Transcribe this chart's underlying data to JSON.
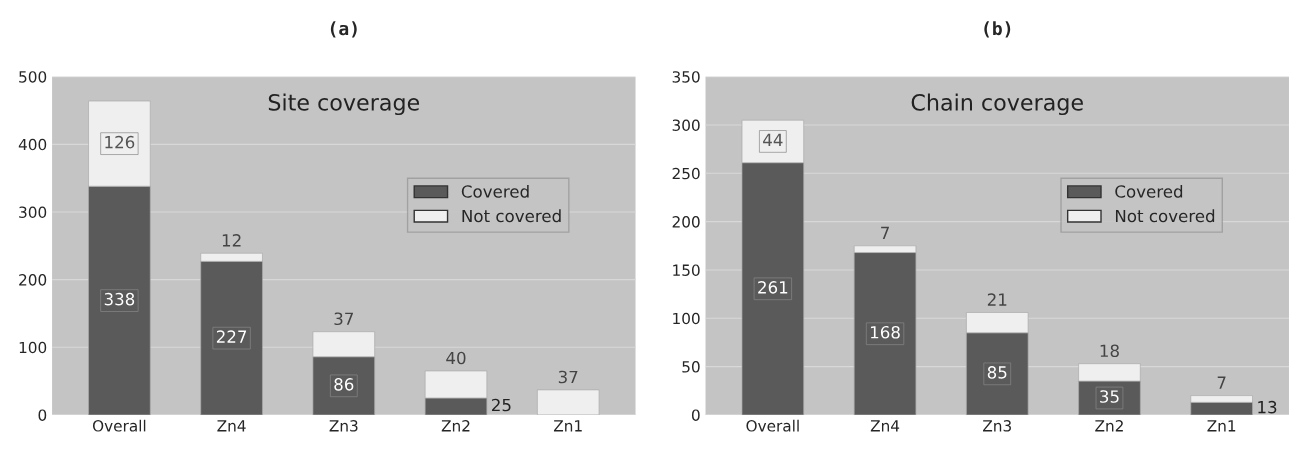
{
  "chart_data": [
    {
      "type": "bar",
      "title": "(a)",
      "subtitle": "Site coverage",
      "categories": [
        "Overall",
        "Zn4",
        "Zn3",
        "Zn2",
        "Zn1"
      ],
      "stacked": true,
      "ylim": [
        0,
        500
      ],
      "yticks": [
        0,
        100,
        200,
        300,
        400,
        500
      ],
      "grid": "y",
      "legend": "right",
      "series": [
        {
          "name": "Covered",
          "color": "#5a5a5a",
          "values": [
            338,
            227,
            86,
            25,
            0
          ],
          "value_labels": [
            "338",
            "227",
            "86",
            "25",
            null
          ]
        },
        {
          "name": "Not covered",
          "color": "#efefef",
          "values": [
            126,
            12,
            37,
            40,
            37
          ],
          "value_labels": [
            "126",
            "12",
            "37",
            "40",
            "37"
          ]
        }
      ]
    },
    {
      "type": "bar",
      "title": "(b)",
      "subtitle": "Chain coverage",
      "categories": [
        "Overall",
        "Zn4",
        "Zn3",
        "Zn2",
        "Zn1"
      ],
      "stacked": true,
      "ylim": [
        0,
        350
      ],
      "yticks": [
        0,
        50,
        100,
        150,
        200,
        250,
        300,
        350
      ],
      "grid": "y",
      "legend": "right",
      "series": [
        {
          "name": "Covered",
          "color": "#5a5a5a",
          "values": [
            261,
            168,
            85,
            35,
            13
          ],
          "value_labels": [
            "261",
            "168",
            "85",
            "35",
            "13"
          ]
        },
        {
          "name": "Not covered",
          "color": "#efefef",
          "values": [
            44,
            7,
            21,
            18,
            7
          ],
          "value_labels": [
            "44",
            "7",
            "21",
            "18",
            "7"
          ]
        }
      ]
    }
  ]
}
